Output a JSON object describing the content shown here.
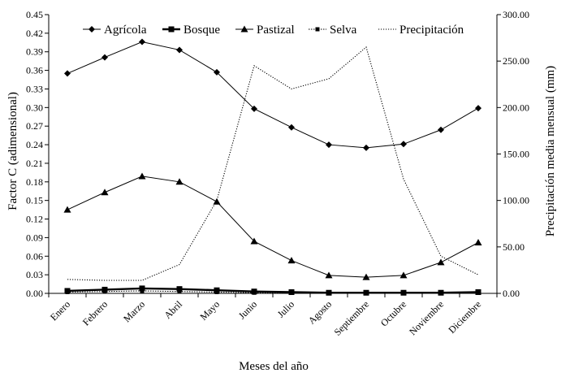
{
  "chart_data": {
    "type": "line",
    "categories": [
      "Enero",
      "Febrero",
      "Marzo",
      "Abril",
      "Mayo",
      "Junio",
      "Julio",
      "Agosto",
      "Septiembre",
      "Octubre",
      "Noviembre",
      "Diciembre"
    ],
    "series": [
      {
        "name": "Agrícola",
        "axis": "left",
        "marker": "diamond",
        "values": [
          0.355,
          0.381,
          0.406,
          0.393,
          0.357,
          0.298,
          0.268,
          0.24,
          0.235,
          0.241,
          0.264,
          0.299
        ]
      },
      {
        "name": "Bosque",
        "axis": "left",
        "marker": "square",
        "values": [
          0.004,
          0.006,
          0.008,
          0.007,
          0.005,
          0.003,
          0.002,
          0.001,
          0.001,
          0.001,
          0.001,
          0.002
        ]
      },
      {
        "name": "Pastizal",
        "axis": "left",
        "marker": "triangle",
        "values": [
          0.135,
          0.163,
          0.189,
          0.18,
          0.148,
          0.084,
          0.053,
          0.029,
          0.026,
          0.029,
          0.05,
          0.082
        ]
      },
      {
        "name": "Selva",
        "axis": "left",
        "marker": "square-small",
        "values": [
          0.002,
          0.003,
          0.004,
          0.003,
          0.002,
          0.001,
          0.001,
          0.001,
          0.001,
          0.001,
          0.001,
          0.001
        ]
      },
      {
        "name": "Precipitación",
        "axis": "right",
        "marker": "none",
        "values": [
          15,
          14,
          14,
          31,
          100,
          245,
          220,
          231,
          265,
          123,
          40,
          20
        ]
      }
    ],
    "xlabel": "Meses del año",
    "ylabel": "Factor C (adimensional)",
    "ylabel_right": "Precipitación media mensual (mm)",
    "ylim": [
      0,
      0.45
    ],
    "ylim_right": [
      0,
      300
    ],
    "yticks": [
      "0.00",
      "0.03",
      "0.06",
      "0.09",
      "0.12",
      "0.15",
      "0.18",
      "0.21",
      "0.24",
      "0.27",
      "0.30",
      "0.33",
      "0.36",
      "0.39",
      "0.42",
      "0.45"
    ],
    "yticks_right": [
      "0.00",
      "50.00",
      "100.00",
      "150.00",
      "200.00",
      "250.00",
      "300.00"
    ],
    "legend_position": "top",
    "grid": false
  }
}
